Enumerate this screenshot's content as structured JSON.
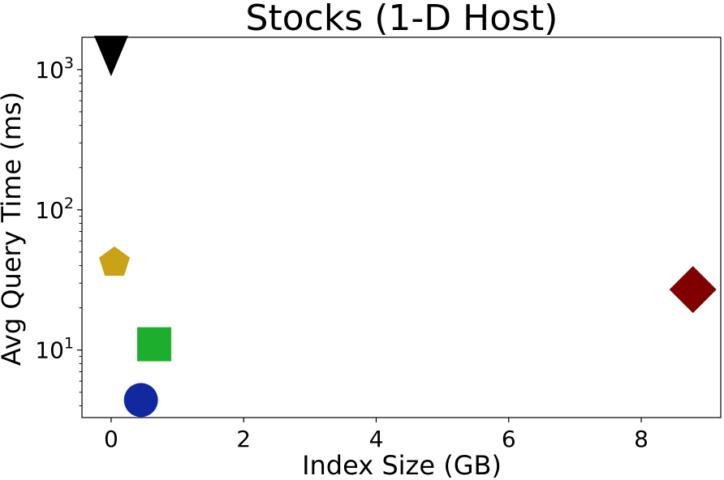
{
  "chart_data": {
    "type": "scatter",
    "title": "Stocks (1-D Host)",
    "xlabel": "Index Size (GB)",
    "ylabel": "Avg Query Time (ms)",
    "xscale": "linear",
    "yscale": "log",
    "xlim": [
      -0.44,
      9.2
    ],
    "ylim": [
      3.3,
      1700
    ],
    "xticks": [
      0,
      2,
      4,
      6,
      8
    ],
    "xtick_labels": [
      "0",
      "2",
      "4",
      "6",
      "8"
    ],
    "yticks": [
      10,
      100,
      1000
    ],
    "ytick_labels": [
      {
        "base": "10",
        "exp": "1"
      },
      {
        "base": "10",
        "exp": "2"
      },
      {
        "base": "10",
        "exp": "3"
      }
    ],
    "grid": false,
    "points": [
      {
        "x": 0.0,
        "y": 1250,
        "marker": "triangle-down",
        "color": "#000000"
      },
      {
        "x": 0.05,
        "y": 42,
        "marker": "pentagon",
        "color": "#C9A216"
      },
      {
        "x": 0.65,
        "y": 11,
        "marker": "square",
        "color": "#1EAE2E"
      },
      {
        "x": 0.45,
        "y": 4.4,
        "marker": "circle",
        "color": "#11289F"
      },
      {
        "x": 8.78,
        "y": 27,
        "marker": "diamond",
        "color": "#800000"
      }
    ]
  }
}
